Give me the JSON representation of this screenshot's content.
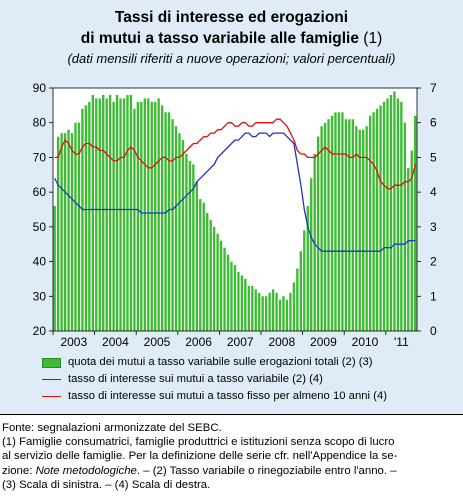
{
  "title": {
    "line1": "Tassi di interesse ed erogazioni",
    "line2_main": "di mutui a tasso variabile alle famiglie",
    "line2_note": " (1)",
    "subtitle": "(dati mensili riferiti a nuove operazioni; valori percentuali)"
  },
  "legend": [
    {
      "label": "quota dei mutui a tasso variabile sulle erogazioni totali (2) (3)"
    },
    {
      "label": "tasso di interesse sui mutui a tasso variabile (2) (4)"
    },
    {
      "label": "tasso di interesse sui mutui a tasso fisso per almeno 10 anni (4)"
    }
  ],
  "notes": {
    "source": "Fonte: segnalazioni armonizzate del SEBC.",
    "line1": "(1) Famiglie consumatrici, famiglie produttrici e istituzioni senza scopo di lucro",
    "line2": "al servizio delle famiglie. Per la definizione delle serie cfr. nell'Appendice la se-",
    "line3_a": "zione: ",
    "line3_italic": "Note metodologiche",
    "line3_b": ". – (2) Tasso variabile o rinegoziabile entro l'anno. –",
    "line4": "(3) Scala di sinistra. – (4) Scala di destra."
  },
  "colors": {
    "bars": "#3dbb33",
    "bars_edge": "#2a8a25",
    "variable_rate": "#2233cc",
    "fixed_rate": "#dd1111",
    "panel": "#dfecf7"
  },
  "chart_data": {
    "type": "bar",
    "x_tick_labels": [
      "2003",
      "2004",
      "2005",
      "2006",
      "2007",
      "2008",
      "2009",
      "2010",
      "'11"
    ],
    "x_tick_years": [
      2003,
      2004,
      2005,
      2006,
      2007,
      2008,
      2009,
      2010,
      2011
    ],
    "start_year": 2003,
    "months_shown": 105,
    "y_left": {
      "ylim": [
        20,
        90
      ],
      "ticks": [
        20,
        30,
        40,
        50,
        60,
        70,
        80,
        90
      ]
    },
    "y_right": {
      "ylim": [
        0,
        7
      ],
      "ticks": [
        0,
        1,
        2,
        3,
        4,
        5,
        6,
        7
      ]
    },
    "series": [
      {
        "name": "quota dei mutui a tasso variabile sulle erogazioni totali (2) (3)",
        "axis": "left",
        "type": "bar",
        "values": [
          56,
          76,
          77,
          77,
          78,
          77,
          80,
          80,
          84,
          85,
          86,
          88,
          87,
          87,
          88,
          87,
          88,
          86,
          88,
          87,
          87,
          88,
          88,
          84,
          86,
          86,
          87,
          87,
          86,
          86,
          87,
          85,
          83,
          83,
          81,
          79,
          77,
          75,
          71,
          69,
          68,
          63,
          58,
          57,
          54,
          52,
          50,
          48,
          46,
          44,
          42,
          40,
          39,
          37,
          36,
          35,
          33,
          33,
          32,
          31,
          30,
          30,
          31,
          32,
          31,
          29,
          30,
          29,
          31,
          34,
          38,
          43,
          49,
          56,
          64,
          71,
          76,
          79,
          80,
          81,
          82,
          83,
          83,
          83,
          81,
          81,
          81,
          79,
          78,
          78,
          79,
          82,
          83,
          84,
          85,
          86,
          87,
          88,
          89,
          87,
          86,
          80,
          67,
          72,
          82
        ]
      },
      {
        "name": "tasso di interesse sui mutui a tasso variabile (2) (4)",
        "axis": "right",
        "type": "line",
        "values": [
          4.4,
          4.2,
          4.1,
          4.0,
          3.9,
          3.8,
          3.7,
          3.6,
          3.5,
          3.5,
          3.5,
          3.5,
          3.5,
          3.5,
          3.5,
          3.5,
          3.5,
          3.5,
          3.5,
          3.5,
          3.5,
          3.5,
          3.5,
          3.5,
          3.5,
          3.4,
          3.4,
          3.4,
          3.4,
          3.4,
          3.4,
          3.4,
          3.4,
          3.5,
          3.5,
          3.6,
          3.7,
          3.8,
          3.9,
          4.0,
          4.1,
          4.3,
          4.4,
          4.5,
          4.6,
          4.7,
          4.8,
          5.0,
          5.1,
          5.2,
          5.3,
          5.4,
          5.5,
          5.5,
          5.6,
          5.7,
          5.7,
          5.6,
          5.6,
          5.7,
          5.7,
          5.7,
          5.6,
          5.7,
          5.7,
          5.7,
          5.7,
          5.6,
          5.5,
          5.4,
          4.8,
          4.2,
          3.5,
          3.0,
          2.7,
          2.5,
          2.4,
          2.3,
          2.3,
          2.3,
          2.3,
          2.3,
          2.3,
          2.3,
          2.3,
          2.3,
          2.3,
          2.3,
          2.3,
          2.3,
          2.3,
          2.3,
          2.3,
          2.3,
          2.3,
          2.4,
          2.4,
          2.4,
          2.5,
          2.5,
          2.5,
          2.5,
          2.6,
          2.6,
          2.6
        ]
      },
      {
        "name": "tasso di interesse sui mutui a tasso fisso per almeno 10 anni (4)",
        "axis": "right",
        "type": "line",
        "values": [
          5.0,
          5.0,
          5.3,
          5.5,
          5.4,
          5.2,
          5.1,
          5.1,
          5.3,
          5.4,
          5.4,
          5.3,
          5.3,
          5.2,
          5.2,
          5.1,
          5.0,
          4.9,
          4.9,
          5.0,
          5.0,
          5.2,
          5.3,
          5.2,
          5.0,
          4.9,
          4.8,
          4.7,
          4.7,
          4.8,
          4.9,
          5.0,
          5.0,
          4.9,
          4.9,
          5.0,
          5.0,
          5.1,
          5.2,
          5.3,
          5.4,
          5.4,
          5.5,
          5.6,
          5.6,
          5.7,
          5.7,
          5.8,
          5.8,
          5.9,
          6.0,
          6.0,
          5.9,
          5.9,
          6.0,
          6.0,
          5.9,
          5.9,
          6.0,
          6.0,
          6.0,
          6.0,
          6.0,
          6.0,
          6.1,
          6.1,
          6.0,
          5.9,
          5.7,
          5.5,
          5.2,
          5.1,
          5.1,
          5.0,
          5.0,
          5.0,
          5.1,
          5.2,
          5.3,
          5.2,
          5.1,
          5.1,
          5.1,
          5.1,
          5.1,
          5.0,
          5.0,
          5.1,
          5.0,
          5.0,
          5.0,
          4.9,
          4.8,
          4.6,
          4.3,
          4.2,
          4.1,
          4.1,
          4.2,
          4.2,
          4.2,
          4.3,
          4.3,
          4.4,
          4.8
        ]
      }
    ]
  }
}
